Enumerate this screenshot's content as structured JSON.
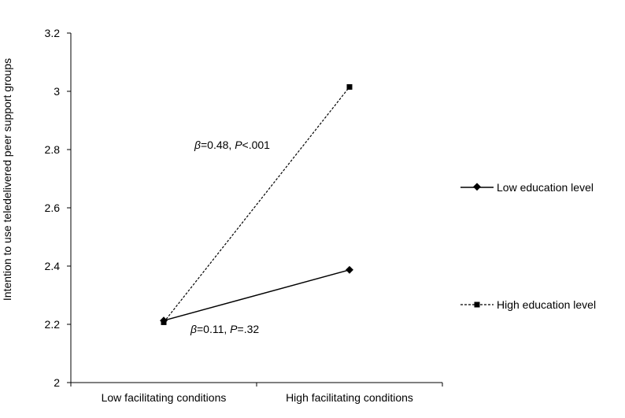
{
  "chart_data": {
    "type": "line",
    "categories": [
      "Low facilitating conditions",
      "High facilitating conditions"
    ],
    "series": [
      {
        "name": "Low education level",
        "values": [
          2.213,
          2.387
        ],
        "color": "#000000",
        "dash": "solid",
        "marker": "diamond"
      },
      {
        "name": "High education level",
        "values": [
          2.207,
          3.015
        ],
        "color": "#000000",
        "dash": "dashed",
        "marker": "square"
      }
    ],
    "ylabel": "Intention to use teledelivered peer support groups",
    "xlabel": "",
    "ylim": [
      2,
      3.2
    ],
    "yticks": [
      "2",
      "2.2",
      "2.4",
      "2.6",
      "2.8",
      "3",
      "3.2"
    ],
    "ytick_values": [
      2,
      2.2,
      2.4,
      2.6,
      2.8,
      3,
      3.2
    ],
    "grid": false,
    "legend_position": "right",
    "annotations": [
      {
        "beta_symbol": "β",
        "beta_value": "=0.48, ",
        "p_symbol": "P",
        "p_value": "<.001"
      },
      {
        "beta_symbol": "β",
        "beta_value": "=0.11, ",
        "p_symbol": "P",
        "p_value": "=.32"
      }
    ]
  }
}
